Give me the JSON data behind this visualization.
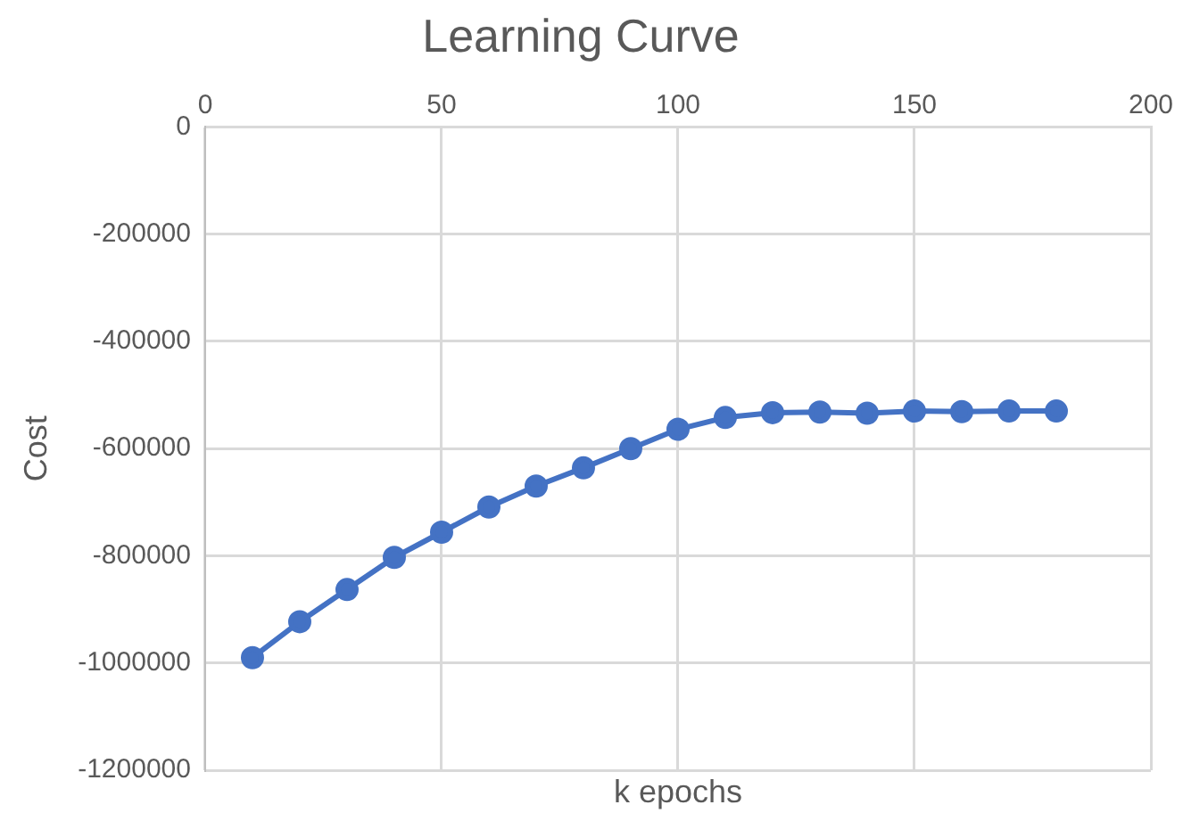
{
  "chart_data": {
    "type": "line",
    "title": "Learning Curve",
    "xlabel": "k epochs",
    "ylabel": "Cost",
    "x": [
      10,
      20,
      30,
      40,
      50,
      60,
      70,
      80,
      90,
      100,
      110,
      120,
      130,
      140,
      150,
      160,
      170,
      180
    ],
    "series": [
      {
        "color": "#4472c4",
        "values": [
          -990000,
          -923000,
          -863000,
          -803000,
          -756000,
          -709000,
          -670000,
          -636000,
          -600000,
          -564000,
          -542000,
          -533000,
          -532000,
          -534000,
          -530000,
          -531000,
          -530000,
          -530000
        ]
      }
    ],
    "xlim": [
      0,
      200
    ],
    "xticks": [
      0,
      50,
      100,
      150,
      200
    ],
    "ylim": [
      -1200000,
      0
    ],
    "yticks": [
      -1200000,
      -1000000,
      -800000,
      -600000,
      -400000,
      -200000,
      0
    ],
    "grid": true,
    "legend": false,
    "marker": "circle",
    "line_style": "solid"
  }
}
